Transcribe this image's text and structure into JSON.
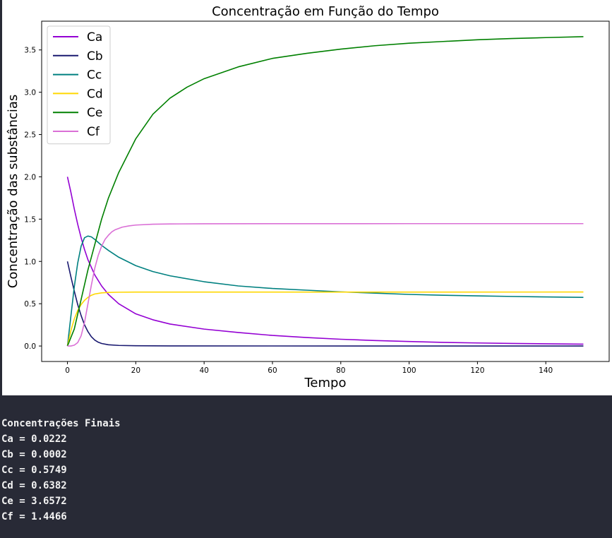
{
  "chart_data": {
    "type": "line",
    "title": "Concentração em Função do Tempo",
    "xlabel": "Tempo",
    "ylabel": "Concentração das substâncias",
    "xlim": [
      -7.55,
      158.55
    ],
    "ylim": [
      -0.183,
      3.84
    ],
    "xticks": [
      0,
      20,
      40,
      60,
      80,
      100,
      120,
      140
    ],
    "yticks": [
      0.0,
      0.5,
      1.0,
      1.5,
      2.0,
      2.5,
      3.0,
      3.5
    ],
    "grid": false,
    "legend_position": "upper-left",
    "series": [
      {
        "name": "Ca",
        "color": "#9400d3",
        "x": [
          0,
          1,
          2,
          3,
          4,
          5,
          6,
          8,
          10,
          12,
          15,
          20,
          25,
          30,
          40,
          50,
          60,
          70,
          80,
          90,
          100,
          110,
          120,
          130,
          140,
          151
        ],
        "y": [
          2.0,
          1.82,
          1.62,
          1.44,
          1.28,
          1.14,
          1.02,
          0.84,
          0.71,
          0.61,
          0.5,
          0.38,
          0.31,
          0.26,
          0.2,
          0.16,
          0.125,
          0.1,
          0.08,
          0.065,
          0.053,
          0.043,
          0.036,
          0.03,
          0.026,
          0.0222
        ]
      },
      {
        "name": "Cb",
        "color": "#191970",
        "x": [
          0,
          1,
          2,
          3,
          4,
          5,
          6,
          7,
          8,
          9,
          10,
          12,
          15,
          20,
          30,
          60,
          100,
          151
        ],
        "y": [
          1.0,
          0.82,
          0.65,
          0.49,
          0.36,
          0.25,
          0.17,
          0.11,
          0.07,
          0.045,
          0.03,
          0.015,
          0.007,
          0.003,
          0.001,
          0.0005,
          0.0003,
          0.0002
        ]
      },
      {
        "name": "Cc",
        "color": "#008080",
        "x": [
          0,
          1,
          2,
          3,
          4,
          5,
          6,
          7,
          8,
          10,
          12,
          15,
          20,
          25,
          30,
          40,
          50,
          60,
          70,
          80,
          90,
          100,
          110,
          120,
          130,
          140,
          151
        ],
        "y": [
          0.0,
          0.35,
          0.7,
          0.98,
          1.18,
          1.28,
          1.3,
          1.29,
          1.26,
          1.19,
          1.13,
          1.05,
          0.95,
          0.88,
          0.83,
          0.76,
          0.71,
          0.68,
          0.66,
          0.64,
          0.625,
          0.61,
          0.6,
          0.593,
          0.586,
          0.58,
          0.5749
        ]
      },
      {
        "name": "Cd",
        "color": "#ffd700",
        "x": [
          0,
          1,
          2,
          3,
          4,
          5,
          6,
          7,
          8,
          10,
          12,
          15,
          20,
          30,
          50,
          80,
          110,
          151
        ],
        "y": [
          0.0,
          0.18,
          0.32,
          0.42,
          0.49,
          0.54,
          0.575,
          0.6,
          0.615,
          0.628,
          0.633,
          0.636,
          0.6375,
          0.638,
          0.638,
          0.638,
          0.638,
          0.6382
        ]
      },
      {
        "name": "Ce",
        "color": "#008000",
        "x": [
          0,
          2,
          4,
          6,
          8,
          10,
          12,
          15,
          20,
          25,
          30,
          35,
          40,
          50,
          60,
          70,
          80,
          90,
          100,
          110,
          120,
          130,
          140,
          151
        ],
        "y": [
          0.0,
          0.2,
          0.55,
          0.9,
          1.2,
          1.5,
          1.75,
          2.05,
          2.45,
          2.74,
          2.93,
          3.06,
          3.16,
          3.3,
          3.4,
          3.46,
          3.51,
          3.55,
          3.58,
          3.6,
          3.62,
          3.635,
          3.646,
          3.6572
        ]
      },
      {
        "name": "Cf",
        "color": "#da70d6",
        "x": [
          0,
          1,
          2,
          3,
          4,
          5,
          6,
          7,
          8,
          9,
          10,
          11,
          12,
          13,
          14,
          16,
          18,
          20,
          25,
          30,
          40,
          60,
          100,
          151
        ],
        "y": [
          0.0,
          0.0,
          0.01,
          0.04,
          0.12,
          0.28,
          0.5,
          0.72,
          0.92,
          1.07,
          1.18,
          1.26,
          1.31,
          1.35,
          1.375,
          1.405,
          1.42,
          1.43,
          1.44,
          1.443,
          1.445,
          1.446,
          1.4466,
          1.4466
        ]
      }
    ]
  },
  "output": {
    "heading": "Concentrações Finais",
    "lines": [
      "Ca = 0.0222",
      "Cb = 0.0002",
      "Cc = 0.5749",
      "Cd = 0.6382",
      "Ce = 3.6572",
      "Cf = 1.4466"
    ]
  }
}
